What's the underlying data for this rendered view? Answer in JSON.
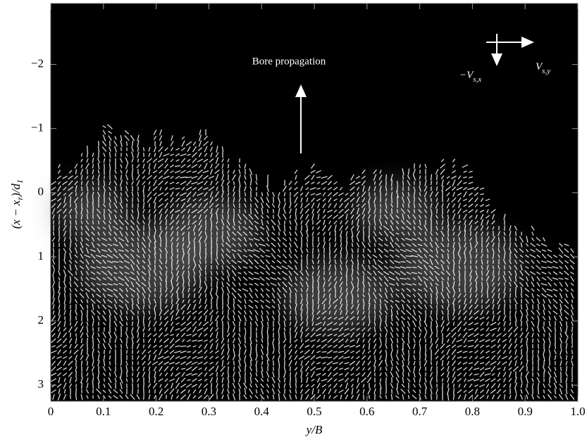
{
  "chart_data": {
    "type": "image",
    "x_label": "y/B",
    "y_label": [
      "(x − x",
      "r",
      ")/d",
      "1"
    ],
    "xlim": [
      0,
      1
    ],
    "xticks": [
      0,
      0.1,
      0.2,
      0.3,
      0.4,
      0.5,
      0.6,
      0.7,
      0.8,
      0.9,
      {
        "value": 1,
        "label": "1.0"
      }
    ],
    "ylim": [
      3.25,
      -2.95
    ],
    "yticks": [
      {
        "value": -2,
        "label": "−2"
      },
      {
        "value": -1,
        "label": "−1"
      },
      0,
      1,
      2,
      3
    ],
    "annotations": {
      "bore": "Bore propagation",
      "vx": [
        "−V",
        "s,x"
      ],
      "vy": [
        "V",
        "s,y"
      ]
    }
  }
}
